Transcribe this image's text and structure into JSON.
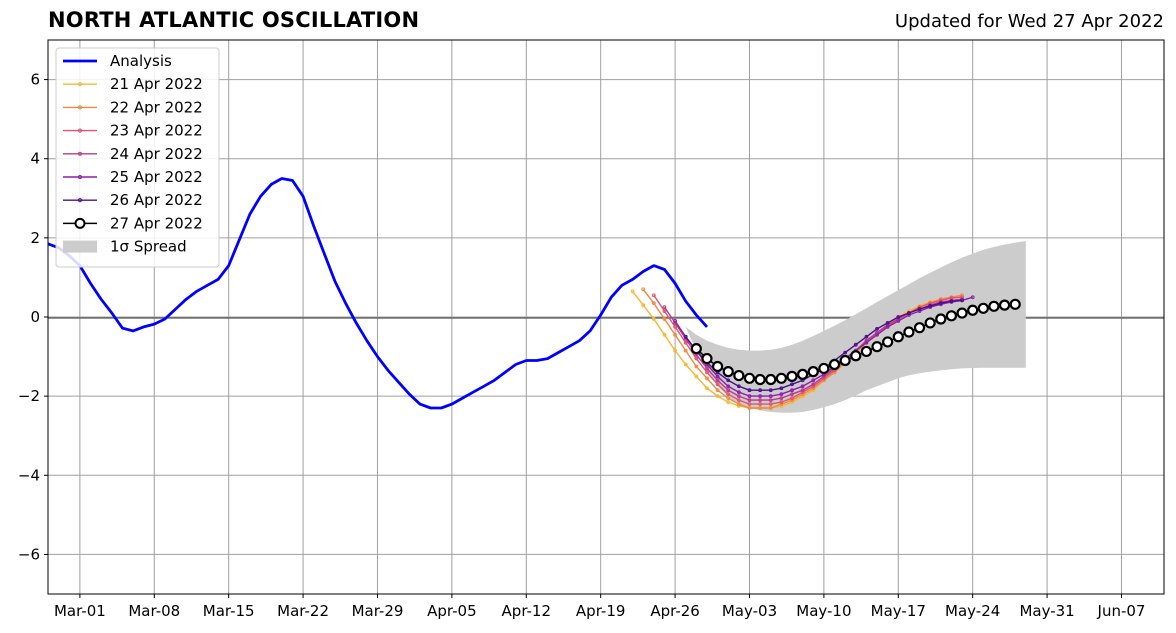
{
  "header": {
    "title": "NORTH ATLANTIC OSCILLATION",
    "updated": "Updated for Wed 27 Apr 2022"
  },
  "chart_data": {
    "type": "line",
    "title": "NORTH ATLANTIC OSCILLATION",
    "xlabel": "",
    "ylabel": "",
    "grid": true,
    "legend_position": "top-left",
    "xlim": [
      "2022-02-26",
      "2022-06-11"
    ],
    "ylim": [
      -7,
      7
    ],
    "x_ticks": [
      {
        "date": "2022-03-01",
        "label": "Mar-01"
      },
      {
        "date": "2022-03-08",
        "label": "Mar-08"
      },
      {
        "date": "2022-03-15",
        "label": "Mar-15"
      },
      {
        "date": "2022-03-22",
        "label": "Mar-22"
      },
      {
        "date": "2022-03-29",
        "label": "Mar-29"
      },
      {
        "date": "2022-04-05",
        "label": "Apr-05"
      },
      {
        "date": "2022-04-12",
        "label": "Apr-12"
      },
      {
        "date": "2022-04-19",
        "label": "Apr-19"
      },
      {
        "date": "2022-04-26",
        "label": "Apr-26"
      },
      {
        "date": "2022-05-03",
        "label": "May-03"
      },
      {
        "date": "2022-05-10",
        "label": "May-10"
      },
      {
        "date": "2022-05-17",
        "label": "May-17"
      },
      {
        "date": "2022-05-24",
        "label": "May-24"
      },
      {
        "date": "2022-05-31",
        "label": "May-31"
      },
      {
        "date": "2022-06-07",
        "label": "Jun-07"
      }
    ],
    "y_ticks": [
      {
        "value": 6,
        "label": "6"
      },
      {
        "value": 4,
        "label": "4"
      },
      {
        "value": 2,
        "label": "2"
      },
      {
        "value": 0,
        "label": "0"
      },
      {
        "value": -2,
        "label": "−2"
      },
      {
        "value": -4,
        "label": "−4"
      },
      {
        "value": -6,
        "label": "−6"
      }
    ],
    "analysis": {
      "name": "Analysis",
      "color": "#0000ff",
      "start_date": "2022-02-26",
      "values": [
        1.85,
        1.75,
        1.55,
        1.3,
        0.85,
        0.45,
        0.1,
        -0.28,
        -0.35,
        -0.25,
        -0.18,
        -0.05,
        0.2,
        0.45,
        0.65,
        0.8,
        0.95,
        1.3,
        1.95,
        2.6,
        3.05,
        3.35,
        3.5,
        3.45,
        3.05,
        2.3,
        1.6,
        0.9,
        0.35,
        -0.15,
        -0.6,
        -1.0,
        -1.35,
        -1.65,
        -1.95,
        -2.2,
        -2.3,
        -2.3,
        -2.2,
        -2.05,
        -1.9,
        -1.75,
        -1.6,
        -1.4,
        -1.2,
        -1.1,
        -1.1,
        -1.05,
        -0.9,
        -0.75,
        -0.6,
        -0.35,
        0.05,
        0.5,
        0.8,
        0.95,
        1.15,
        1.3,
        1.2,
        0.85,
        0.4,
        0.05,
        -0.25
      ]
    },
    "forecasts": [
      {
        "name": "21 Apr 2022",
        "color": "#f7b731",
        "start_date": "2022-04-22",
        "values": [
          0.65,
          0.3,
          -0.05,
          -0.45,
          -0.85,
          -1.2,
          -1.5,
          -1.8,
          -2.0,
          -2.15,
          -2.25,
          -2.3,
          -2.3,
          -2.3,
          -2.25,
          -2.15,
          -2.0,
          -1.85,
          -1.6,
          -1.35,
          -1.1,
          -0.85,
          -0.6,
          -0.4,
          -0.2,
          0.0,
          0.15,
          0.28,
          0.38,
          0.45,
          0.5
        ]
      },
      {
        "name": "22 Apr 2022",
        "color": "#f08a3c",
        "start_date": "2022-04-23",
        "values": [
          0.7,
          0.35,
          -0.05,
          -0.45,
          -0.85,
          -1.25,
          -1.55,
          -1.85,
          -2.05,
          -2.2,
          -2.3,
          -2.3,
          -2.3,
          -2.2,
          -2.1,
          -1.95,
          -1.8,
          -1.6,
          -1.4,
          -1.15,
          -0.9,
          -0.65,
          -0.45,
          -0.25,
          -0.05,
          0.1,
          0.25,
          0.35,
          0.45,
          0.5,
          0.55
        ]
      },
      {
        "name": "23 Apr 2022",
        "color": "#e0556f",
        "start_date": "2022-04-24",
        "values": [
          0.55,
          0.15,
          -0.25,
          -0.65,
          -1.05,
          -1.4,
          -1.7,
          -1.95,
          -2.1,
          -2.2,
          -2.2,
          -2.2,
          -2.15,
          -2.05,
          -1.9,
          -1.75,
          -1.55,
          -1.35,
          -1.1,
          -0.85,
          -0.6,
          -0.4,
          -0.2,
          -0.05,
          0.1,
          0.25,
          0.35,
          0.42,
          0.48,
          0.5
        ]
      },
      {
        "name": "24 Apr 2022",
        "color": "#b83a8e",
        "start_date": "2022-04-25",
        "values": [
          0.25,
          -0.15,
          -0.55,
          -0.95,
          -1.3,
          -1.6,
          -1.85,
          -2.0,
          -2.1,
          -2.1,
          -2.1,
          -2.05,
          -1.95,
          -1.85,
          -1.7,
          -1.5,
          -1.3,
          -1.1,
          -0.85,
          -0.6,
          -0.4,
          -0.2,
          -0.05,
          0.1,
          0.2,
          0.3,
          0.38,
          0.42,
          0.45
        ]
      },
      {
        "name": "25 Apr 2022",
        "color": "#8e1fa8",
        "start_date": "2022-04-26",
        "values": [
          -0.1,
          -0.5,
          -0.85,
          -1.2,
          -1.5,
          -1.75,
          -1.9,
          -2.0,
          -2.0,
          -2.0,
          -1.95,
          -1.85,
          -1.75,
          -1.6,
          -1.45,
          -1.25,
          -1.05,
          -0.85,
          -0.65,
          -0.45,
          -0.25,
          -0.1,
          0.05,
          0.15,
          0.25,
          0.32,
          0.38,
          0.42,
          0.5
        ]
      },
      {
        "name": "26 Apr 2022",
        "color": "#4b0f8a",
        "start_date": "2022-04-27",
        "values": [
          -0.5,
          -0.85,
          -1.15,
          -1.4,
          -1.6,
          -1.75,
          -1.85,
          -1.85,
          -1.85,
          -1.8,
          -1.7,
          -1.6,
          -1.45,
          -1.3,
          -1.1,
          -0.9,
          -0.7,
          -0.5,
          -0.3,
          -0.15,
          0.0,
          0.1,
          0.2,
          0.28,
          0.35,
          0.4,
          0.42
        ]
      },
      {
        "name": "27 Apr 2022",
        "color": "#000000",
        "start_date": "2022-04-28",
        "values": [
          -0.8,
          -1.05,
          -1.25,
          -1.38,
          -1.48,
          -1.55,
          -1.58,
          -1.58,
          -1.55,
          -1.5,
          -1.45,
          -1.38,
          -1.3,
          -1.2,
          -1.1,
          -0.98,
          -0.87,
          -0.75,
          -0.63,
          -0.5,
          -0.38,
          -0.27,
          -0.15,
          -0.05,
          0.03,
          0.1,
          0.17,
          0.22,
          0.27,
          0.3,
          0.32
        ]
      }
    ],
    "spread": {
      "name": "1σ Spread",
      "color": "#cccccc",
      "start_date": "2022-04-27",
      "upper": [
        -0.25,
        -0.45,
        -0.6,
        -0.7,
        -0.78,
        -0.83,
        -0.85,
        -0.85,
        -0.83,
        -0.78,
        -0.7,
        -0.6,
        -0.48,
        -0.35,
        -0.22,
        -0.08,
        0.07,
        0.22,
        0.38,
        0.53,
        0.68,
        0.83,
        0.98,
        1.12,
        1.25,
        1.38,
        1.5,
        1.6,
        1.7,
        1.77,
        1.83,
        1.88,
        1.92
      ],
      "lower": [
        -0.25,
        -0.85,
        -1.35,
        -1.75,
        -2.02,
        -2.2,
        -2.3,
        -2.36,
        -2.4,
        -2.42,
        -2.42,
        -2.4,
        -2.35,
        -2.28,
        -2.2,
        -2.1,
        -1.98,
        -1.85,
        -1.75,
        -1.65,
        -1.55,
        -1.47,
        -1.42,
        -1.38,
        -1.35,
        -1.32,
        -1.3,
        -1.29,
        -1.28,
        -1.28,
        -1.28,
        -1.28,
        -1.28
      ]
    }
  }
}
